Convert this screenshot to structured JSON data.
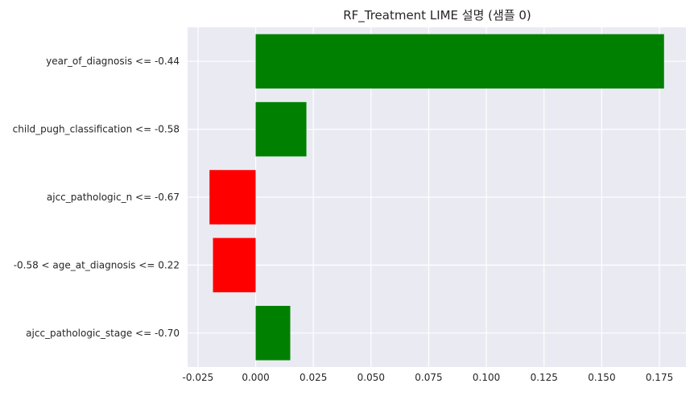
{
  "chart_data": {
    "type": "bar",
    "orientation": "horizontal",
    "title": "RF_Treatment LIME 설명 (샘플 0)",
    "xlabel": "",
    "ylabel": "",
    "categories": [
      "year_of_diagnosis <= -0.44",
      "child_pugh_classification <= -0.58",
      "ajcc_pathologic_n <= -0.67",
      "-0.58 < age_at_diagnosis <= 0.22",
      "ajcc_pathologic_stage <= -0.70"
    ],
    "values": [
      0.177,
      0.022,
      -0.02,
      -0.0185,
      0.015
    ],
    "colors": [
      "#008000",
      "#008000",
      "#ff0000",
      "#ff0000",
      "#008000"
    ],
    "xlim": [
      -0.0295,
      0.1865
    ],
    "xticks": [
      -0.025,
      0.0,
      0.025,
      0.05,
      0.075,
      0.1,
      0.125,
      0.15,
      0.175
    ],
    "xtick_labels": [
      "-0.025",
      "0.000",
      "0.025",
      "0.050",
      "0.075",
      "0.100",
      "0.125",
      "0.150",
      "0.175"
    ],
    "grid": true,
    "background": "#eaeaf2",
    "grid_color": "#ffffff"
  }
}
